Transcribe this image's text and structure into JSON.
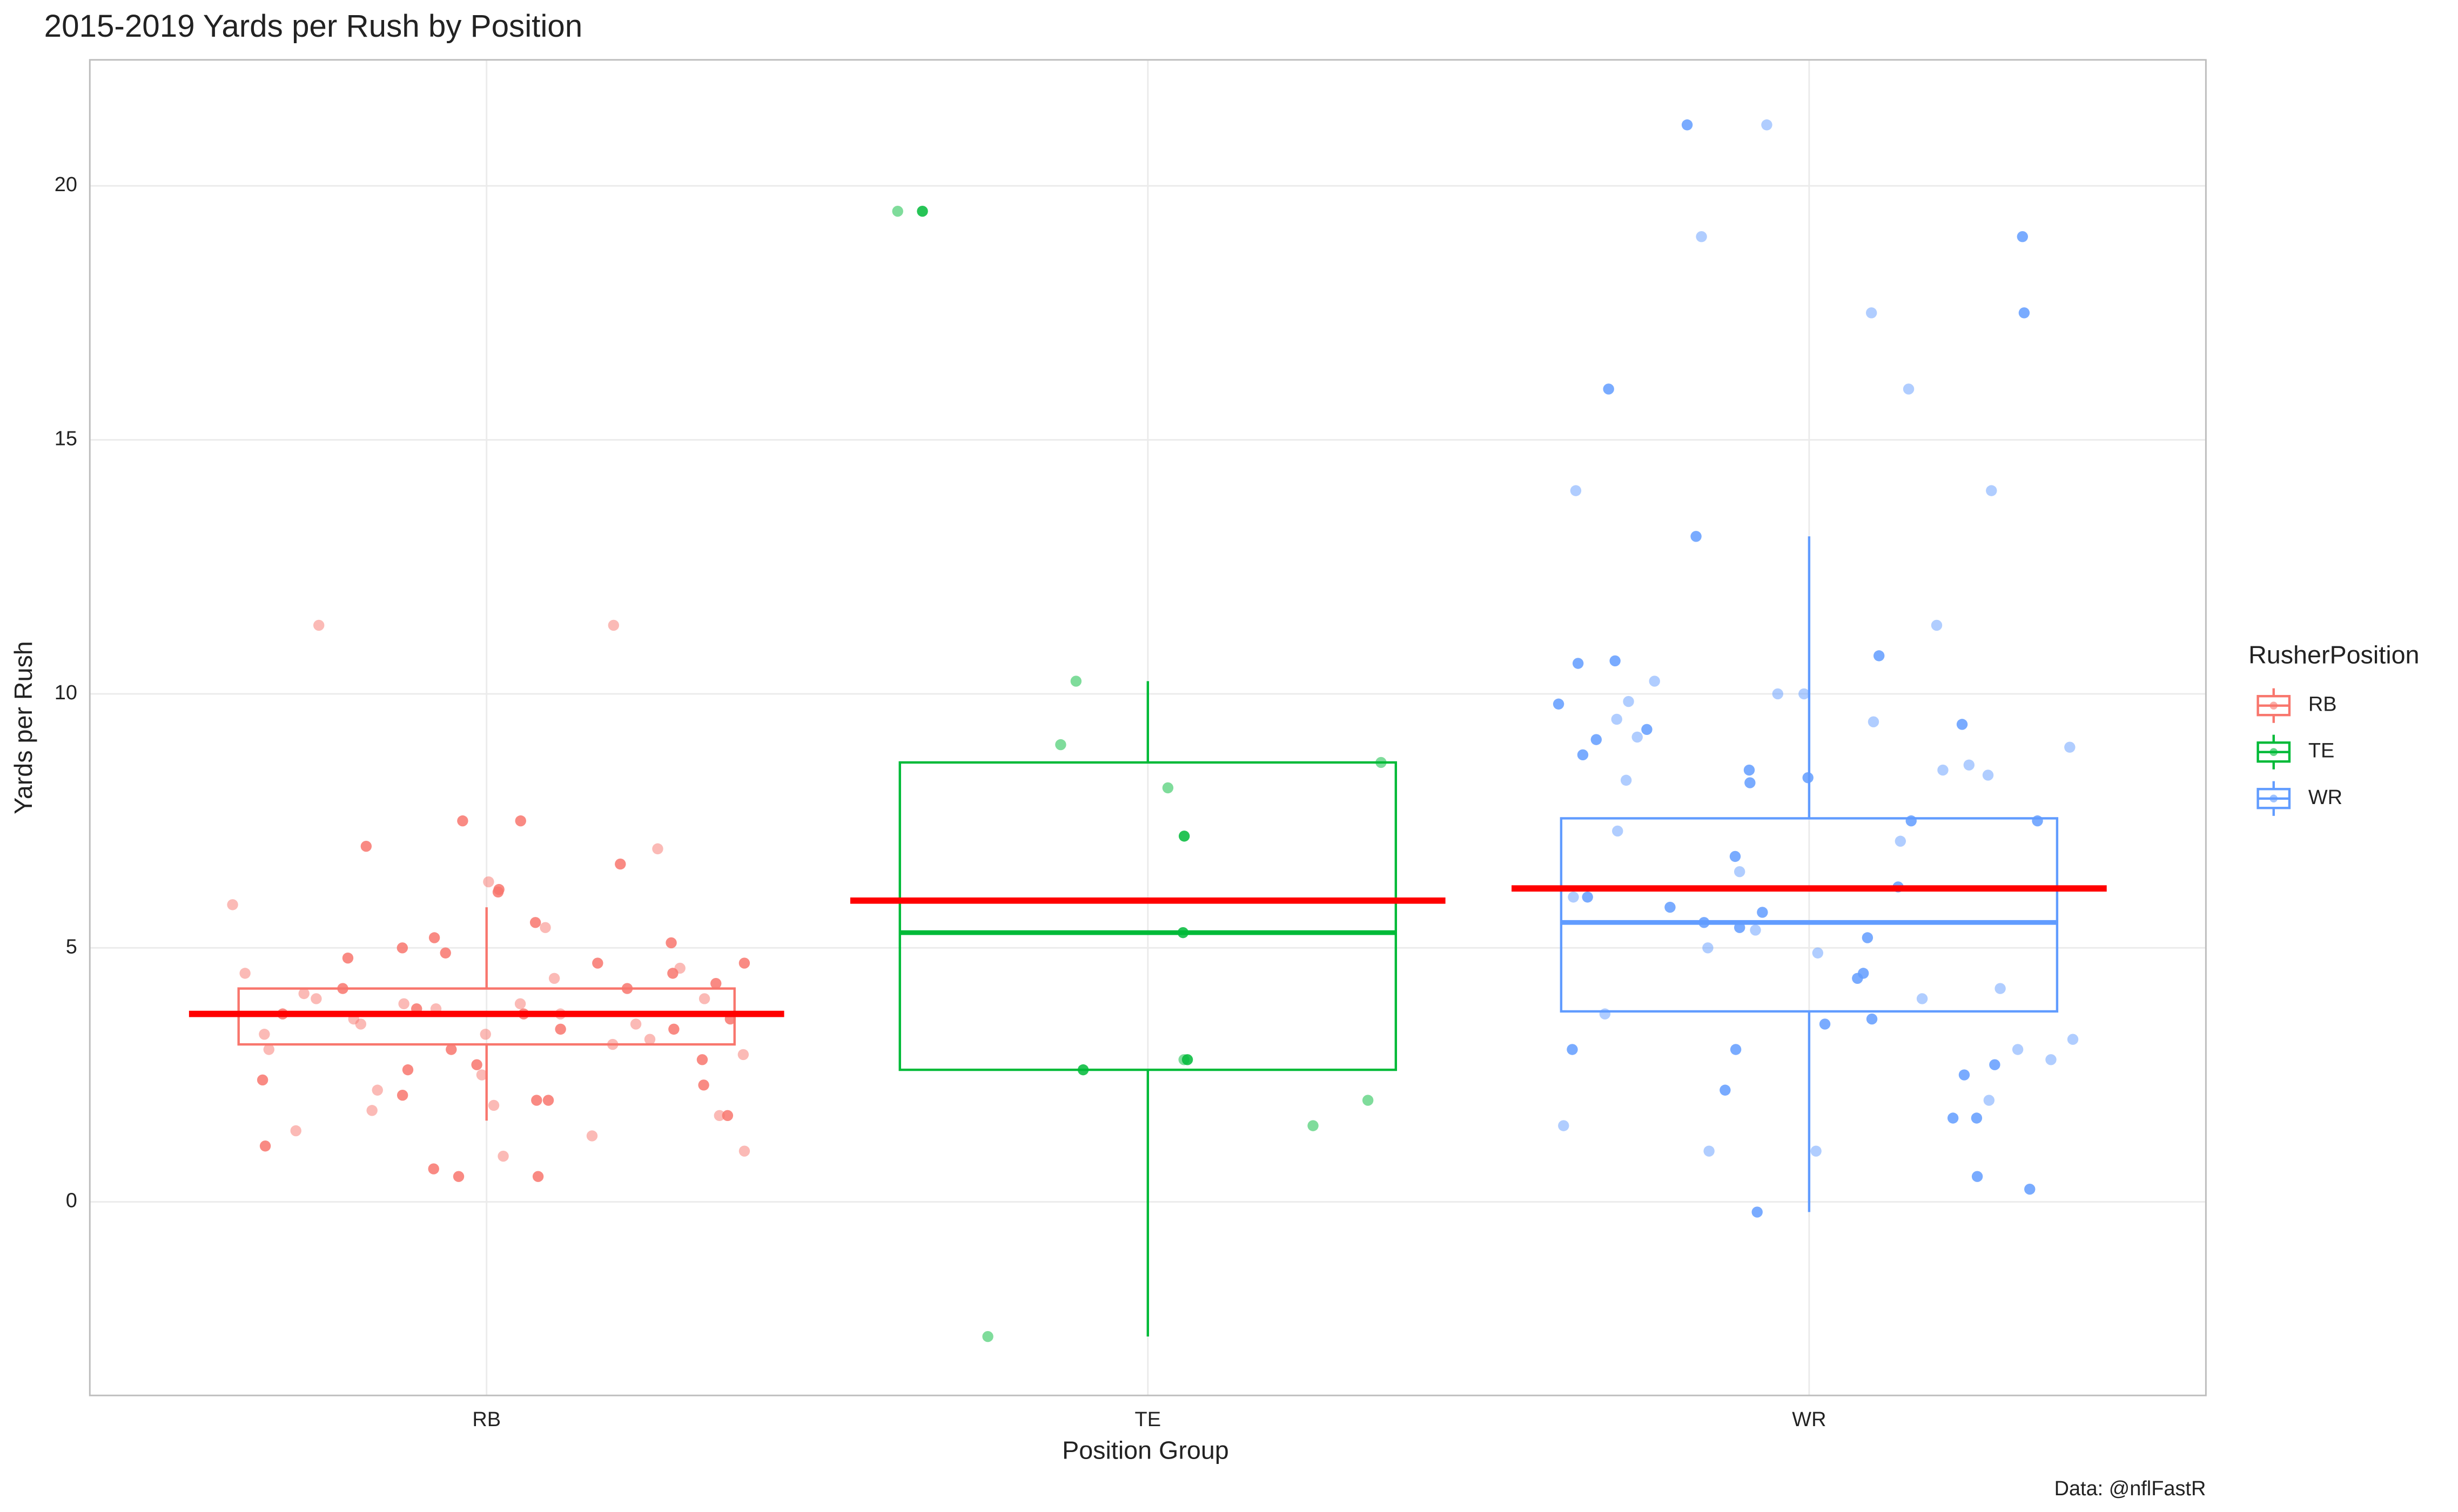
{
  "chart_data": {
    "type": "box",
    "title": "2015-2019 Yards per Rush by Position",
    "x_label": "Position Group",
    "y_label": "Yards per Rush",
    "caption": "Data: @nflFastR",
    "legend_title": "RusherPosition",
    "legend": "right",
    "grid": true,
    "ylim": [
      -3.81,
      22.48
    ],
    "yticks": [
      0,
      5,
      10,
      15,
      20
    ],
    "mean_color": "#ff0000",
    "series": [
      {
        "name": "RB",
        "color": "#F8766D",
        "whisker_low": 1.6,
        "q1": 3.1,
        "median": 3.7,
        "q3": 4.2,
        "whisker_high": 5.8,
        "mean": 3.7,
        "points": [
          11.35,
          11.35,
          7.5,
          7.5,
          7.0,
          6.95,
          6.65,
          6.3,
          6.15,
          6.1,
          5.85,
          5.5,
          5.4,
          5.2,
          5.1,
          5.0,
          4.9,
          4.8,
          4.7,
          4.7,
          4.6,
          4.5,
          4.5,
          4.4,
          4.3,
          4.2,
          4.2,
          4.1,
          4.0,
          4.0,
          3.9,
          3.9,
          3.8,
          3.8,
          3.7,
          3.7,
          3.7,
          3.6,
          3.6,
          3.5,
          3.5,
          3.4,
          3.4,
          3.3,
          3.3,
          3.2,
          3.1,
          3.0,
          3.0,
          2.9,
          2.8,
          2.7,
          2.6,
          2.5,
          2.4,
          2.3,
          2.2,
          2.1,
          2.0,
          2.0,
          1.9,
          1.8,
          1.7,
          1.7,
          1.4,
          1.3,
          1.1,
          1.0,
          0.9,
          0.65,
          0.5,
          0.5
        ]
      },
      {
        "name": "TE",
        "color": "#00BA38",
        "whisker_low": -2.65,
        "q1": 2.6,
        "median": 5.3,
        "q3": 8.65,
        "whisker_high": 10.25,
        "mean": 5.93,
        "points": [
          19.5,
          19.5,
          10.25,
          9.0,
          8.65,
          8.15,
          7.2,
          5.3,
          2.8,
          2.8,
          2.6,
          2.0,
          1.5,
          -2.65
        ]
      },
      {
        "name": "WR",
        "color": "#619CFF",
        "whisker_low": -0.2,
        "q1": 3.75,
        "median": 5.5,
        "q3": 7.55,
        "whisker_high": 13.1,
        "mean": 6.17,
        "points": [
          21.2,
          21.2,
          19.0,
          19.0,
          17.5,
          17.5,
          16.0,
          16.0,
          14.0,
          14.0,
          13.1,
          11.35,
          10.75,
          10.65,
          10.6,
          10.25,
          10.0,
          10.0,
          9.85,
          9.8,
          9.5,
          9.45,
          9.4,
          9.3,
          9.15,
          9.1,
          8.95,
          8.8,
          8.6,
          8.5,
          8.5,
          8.4,
          8.35,
          8.3,
          8.25,
          7.5,
          7.5,
          7.3,
          7.1,
          6.8,
          6.5,
          6.2,
          6.0,
          6.0,
          5.8,
          5.7,
          5.5,
          5.4,
          5.35,
          5.2,
          5.0,
          4.9,
          4.5,
          4.4,
          4.2,
          4.0,
          3.7,
          3.6,
          3.5,
          3.2,
          3.0,
          3.0,
          3.0,
          2.8,
          2.7,
          2.5,
          2.2,
          2.0,
          1.65,
          1.65,
          1.5,
          1.0,
          1.0,
          0.5,
          0.25,
          -0.2
        ]
      }
    ]
  }
}
